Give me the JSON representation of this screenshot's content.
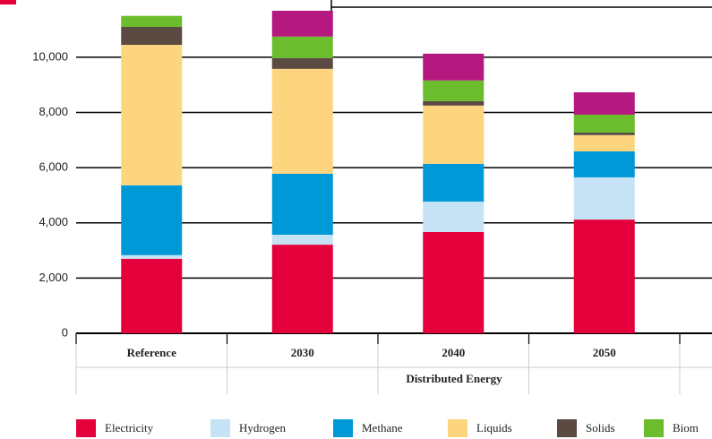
{
  "chart_data": {
    "type": "stacked_bar",
    "categories": [
      "Reference",
      "2030",
      "2040",
      "2050"
    ],
    "x_label": "Distributed Energy",
    "series": [
      {
        "name": "Electricity",
        "color": "#e4003b",
        "values": [
          2700,
          3210,
          3670,
          4120
        ]
      },
      {
        "name": "Hydrogen",
        "color": "#c5e3f5",
        "values": [
          130,
          360,
          1100,
          1530
        ]
      },
      {
        "name": "Methane",
        "color": "#0099d8",
        "values": [
          2530,
          2210,
          1370,
          940
        ]
      },
      {
        "name": "Liquids",
        "color": "#fdd57e",
        "values": [
          5090,
          3800,
          2110,
          590
        ]
      },
      {
        "name": "Solids",
        "color": "#5a4a42",
        "values": [
          650,
          390,
          160,
          90
        ]
      },
      {
        "name": "Biom",
        "color": "#6bbd2e",
        "values": [
          400,
          780,
          750,
          650
        ]
      },
      {
        "name": null,
        "color": "#b5197f",
        "values": [
          null,
          940,
          970,
          810
        ]
      }
    ],
    "ylim": [
      0,
      11750
    ],
    "yticks": [
      0,
      {
        "value": 2000,
        "label": "2,000"
      },
      {
        "value": 4000,
        "label": "4,000"
      },
      {
        "value": 6000,
        "label": "6,000"
      },
      {
        "value": 8000,
        "label": "8,000"
      },
      {
        "value": 10000,
        "label": "10,000"
      }
    ],
    "grid": true
  }
}
